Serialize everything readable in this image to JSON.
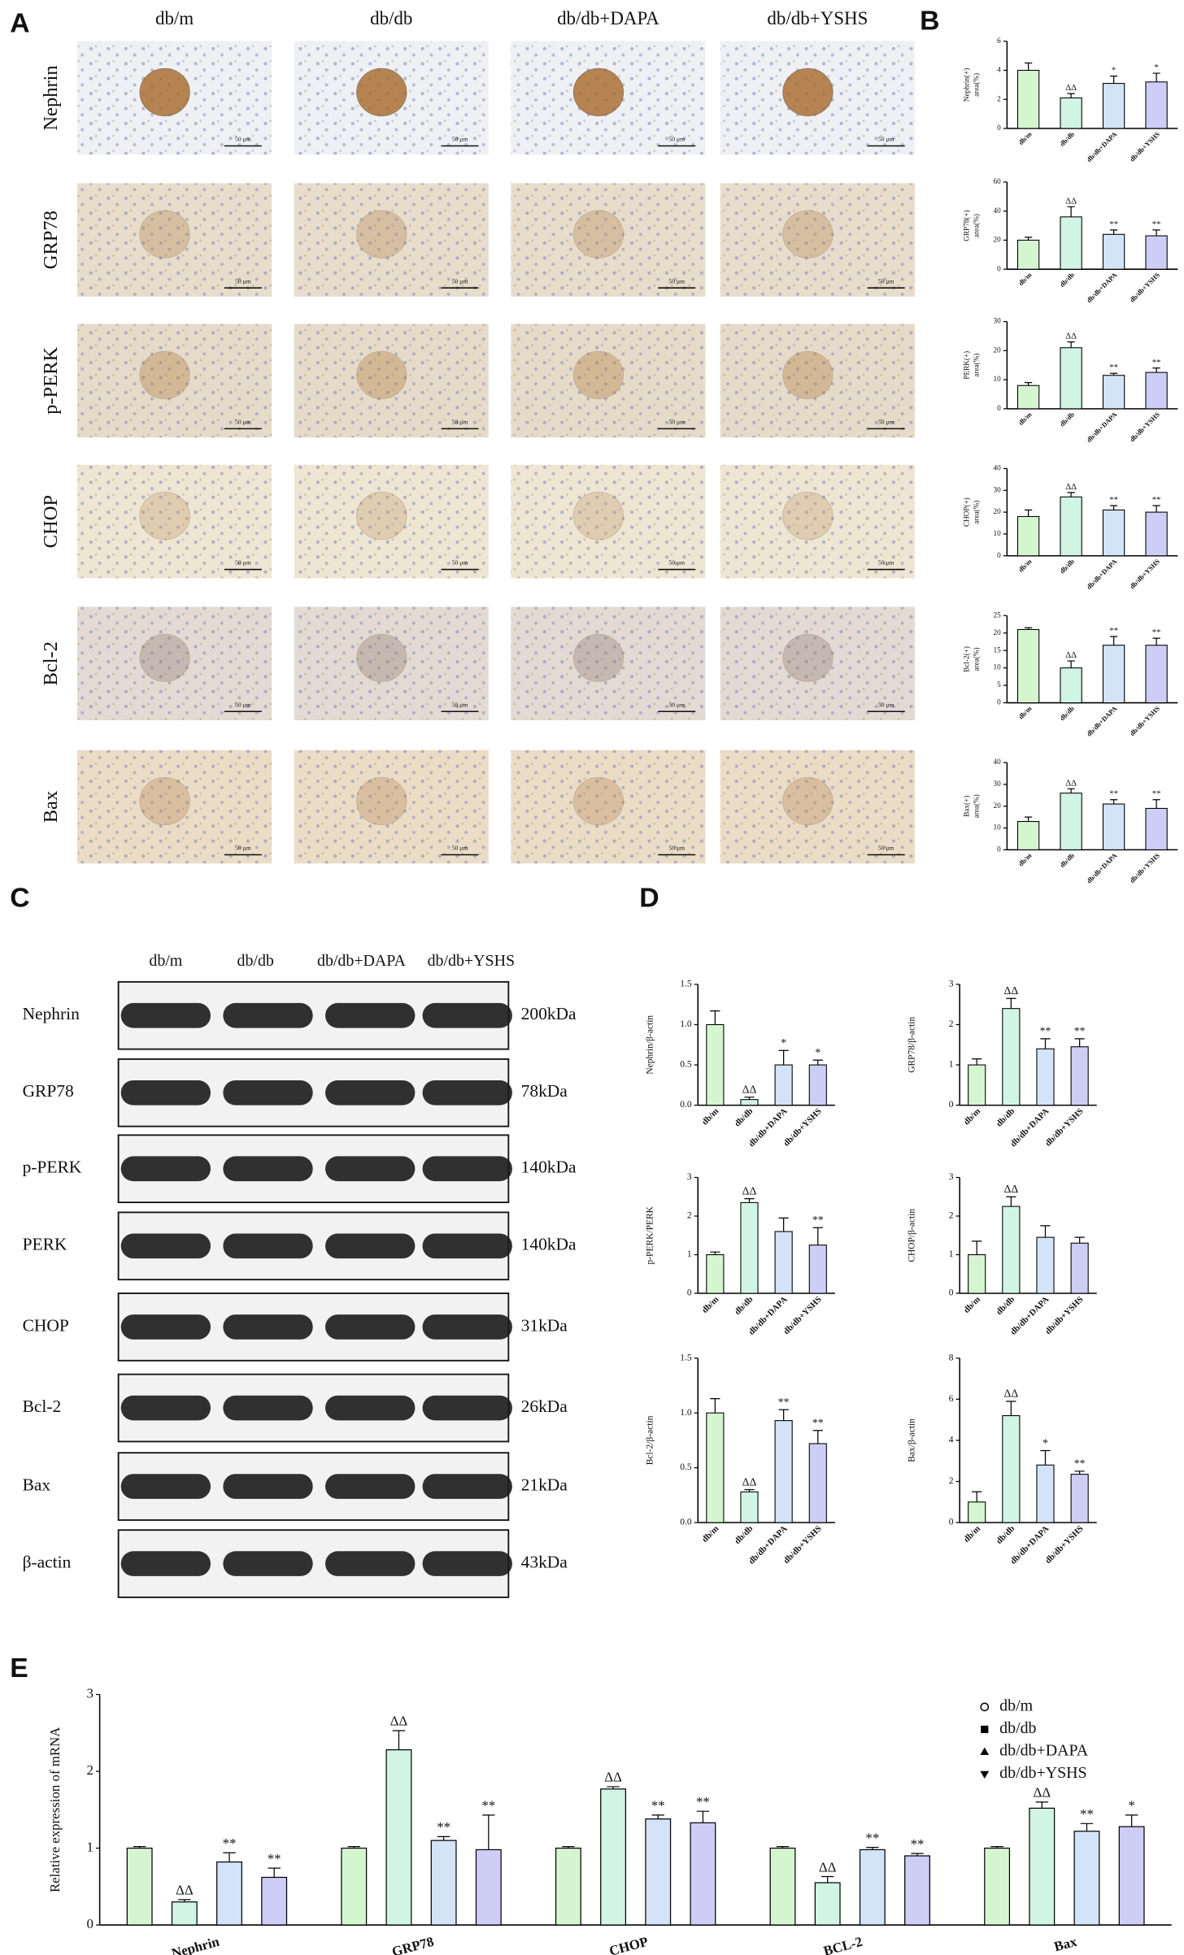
{
  "panel_labels": [
    "A",
    "B",
    "C",
    "D",
    "E"
  ],
  "panel_a": {
    "columns": [
      "db/m",
      "db/db",
      "db/db+DAPA",
      "db/db+YSHS"
    ],
    "rows": [
      "Nephrin",
      "GRP78",
      "p-PERK",
      "CHOP",
      "Bcl-2",
      "Bax"
    ],
    "scale_bar": "50 μm"
  },
  "panel_c": {
    "columns": [
      "db/m",
      "db/db",
      "db/db+DAPA",
      "db/db+YSHS"
    ],
    "rows": [
      {
        "label": "Nephrin",
        "size": "200kDa"
      },
      {
        "label": "GRP78",
        "size": "78kDa"
      },
      {
        "label": "p-PERK",
        "size": "140kDa"
      },
      {
        "label": "PERK",
        "size": "140kDa"
      },
      {
        "label": "CHOP",
        "size": "31kDa"
      },
      {
        "label": "Bcl-2",
        "size": "26kDa"
      },
      {
        "label": "Bax",
        "size": "21kDa"
      },
      {
        "label": "β-actin",
        "size": "43kDa"
      }
    ]
  },
  "chart_data": [
    {
      "type": "bar",
      "ylabel": [
        "Nephrin(+)",
        "area(%)"
      ],
      "categories": [
        "db/m",
        "db/db",
        "db/db+DAPA",
        "db/db+YSHS"
      ],
      "values": [
        4.0,
        2.1,
        3.1,
        3.2
      ],
      "errors": [
        0.5,
        0.3,
        0.5,
        0.6
      ],
      "annotations": [
        null,
        "ΔΔ",
        "*",
        "*"
      ],
      "colors": [
        "#d5f5d0",
        "#d2f4e4",
        "#d3e3f8",
        "#cdcdf6"
      ],
      "ylim": [
        0,
        6
      ],
      "yticks": [
        0,
        2,
        4,
        6
      ],
      "grid": false
    },
    {
      "type": "bar",
      "ylabel": [
        "GRP78(+)",
        "area(%)"
      ],
      "categories": [
        "db/m",
        "db/db",
        "db/db+DAPA",
        "db/db+YSHS"
      ],
      "values": [
        20,
        36,
        24,
        23
      ],
      "errors": [
        2,
        7,
        3,
        4
      ],
      "annotations": [
        null,
        "ΔΔ",
        "**",
        "**"
      ],
      "colors": [
        "#d5f5d0",
        "#d2f4e4",
        "#d3e3f8",
        "#cdcdf6"
      ],
      "ylim": [
        0,
        60
      ],
      "yticks": [
        0,
        20,
        40,
        60
      ],
      "grid": false
    },
    {
      "type": "bar",
      "ylabel": [
        "PERK(+)",
        "area(%)"
      ],
      "categories": [
        "db/m",
        "db/db",
        "db/db+DAPA",
        "db/db+YSHS"
      ],
      "values": [
        8,
        21,
        11.5,
        12.5
      ],
      "errors": [
        1,
        2,
        0.7,
        1.5
      ],
      "annotations": [
        null,
        "ΔΔ",
        "**",
        "**"
      ],
      "colors": [
        "#d5f5d0",
        "#d2f4e4",
        "#d3e3f8",
        "#cdcdf6"
      ],
      "ylim": [
        0,
        30
      ],
      "yticks": [
        0,
        10,
        20,
        30
      ],
      "grid": false
    },
    {
      "type": "bar",
      "ylabel": [
        "CHOP(+)",
        "area(%)"
      ],
      "categories": [
        "db/m",
        "db/db",
        "db/db+DAPA",
        "db/db+YSHS"
      ],
      "values": [
        18,
        27,
        21,
        20
      ],
      "errors": [
        3,
        2,
        2,
        3
      ],
      "annotations": [
        null,
        "ΔΔ",
        "**",
        "**"
      ],
      "colors": [
        "#d5f5d0",
        "#d2f4e4",
        "#d3e3f8",
        "#cdcdf6"
      ],
      "ylim": [
        0,
        40
      ],
      "yticks": [
        0,
        10,
        20,
        30,
        40
      ],
      "grid": false
    },
    {
      "type": "bar",
      "ylabel": [
        "Bcl-2(+)",
        "area(%)"
      ],
      "categories": [
        "db/m",
        "db/db",
        "db/db+DAPA",
        "db/db+YSHS"
      ],
      "values": [
        21,
        10,
        16.5,
        16.5
      ],
      "errors": [
        0.5,
        2,
        2.5,
        2
      ],
      "annotations": [
        null,
        "ΔΔ",
        "**",
        "**"
      ],
      "colors": [
        "#d5f5d0",
        "#d2f4e4",
        "#d3e3f8",
        "#cdcdf6"
      ],
      "ylim": [
        0,
        25
      ],
      "yticks": [
        0,
        5,
        10,
        15,
        20,
        25
      ],
      "grid": false
    },
    {
      "type": "bar",
      "ylabel": [
        "Bax(+)",
        "area(%)"
      ],
      "categories": [
        "db/m",
        "db/db",
        "db/db+DAPA",
        "db/db+YSHS"
      ],
      "values": [
        13,
        26,
        21,
        19
      ],
      "errors": [
        2,
        2,
        2,
        4
      ],
      "annotations": [
        null,
        "ΔΔ",
        "**",
        "**"
      ],
      "colors": [
        "#d5f5d0",
        "#d2f4e4",
        "#d3e3f8",
        "#cdcdf6"
      ],
      "ylim": [
        0,
        40
      ],
      "yticks": [
        0,
        10,
        20,
        30,
        40
      ],
      "grid": false
    },
    {
      "type": "bar",
      "ylabel": [
        "Nephrin/β-actin"
      ],
      "categories": [
        "db/m",
        "db/db",
        "db/db+DAPA",
        "db/db+YSHS"
      ],
      "values": [
        1.0,
        0.07,
        0.5,
        0.5
      ],
      "errors": [
        0.17,
        0.03,
        0.18,
        0.06
      ],
      "annotations": [
        null,
        "ΔΔ",
        "*",
        "*"
      ],
      "colors": [
        "#d5f5d0",
        "#d2f4e4",
        "#d3e3f8",
        "#cdcdf6"
      ],
      "ylim": [
        0,
        1.5
      ],
      "yticks": [
        {
          "value": 0,
          "label": "0.0"
        },
        0.5,
        {
          "value": 1,
          "label": "1.0"
        },
        1.5
      ],
      "grid": false
    },
    {
      "type": "bar",
      "ylabel": [
        "GRP78/β-actin"
      ],
      "categories": [
        "db/m",
        "db/db",
        "db/db+DAPA",
        "db/db+YSHS"
      ],
      "values": [
        1.0,
        2.4,
        1.4,
        1.45
      ],
      "errors": [
        0.15,
        0.25,
        0.25,
        0.2
      ],
      "annotations": [
        null,
        "ΔΔ",
        "**",
        "**"
      ],
      "colors": [
        "#d5f5d0",
        "#d2f4e4",
        "#d3e3f8",
        "#cdcdf6"
      ],
      "ylim": [
        0,
        3
      ],
      "yticks": [
        0,
        1,
        2,
        3
      ],
      "grid": false
    },
    {
      "type": "bar",
      "ylabel": [
        "p-PERK/PERK"
      ],
      "categories": [
        "db/m",
        "db/db",
        "db/db+DAPA",
        "db/db+YSHS"
      ],
      "values": [
        1.0,
        2.35,
        1.6,
        1.25
      ],
      "errors": [
        0.07,
        0.1,
        0.35,
        0.45
      ],
      "annotations": [
        null,
        "ΔΔ",
        null,
        "**"
      ],
      "colors": [
        "#d5f5d0",
        "#d2f4e4",
        "#d3e3f8",
        "#cdcdf6"
      ],
      "ylim": [
        0,
        3
      ],
      "yticks": [
        0,
        1,
        2,
        3
      ],
      "grid": false
    },
    {
      "type": "bar",
      "ylabel": [
        "CHOP/β-actin"
      ],
      "categories": [
        "db/m",
        "db/db",
        "db/db+DAPA",
        "db/db+YSHS"
      ],
      "values": [
        1.0,
        2.25,
        1.45,
        1.3
      ],
      "errors": [
        0.35,
        0.25,
        0.3,
        0.15
      ],
      "annotations": [
        null,
        "ΔΔ",
        null,
        null
      ],
      "colors": [
        "#d5f5d0",
        "#d2f4e4",
        "#d3e3f8",
        "#cdcdf6"
      ],
      "ylim": [
        0,
        3
      ],
      "yticks": [
        0,
        1,
        2,
        3
      ],
      "grid": false
    },
    {
      "type": "bar",
      "ylabel": [
        "Bcl-2/β-actin"
      ],
      "categories": [
        "db/m",
        "db/db",
        "db/db+DAPA",
        "db/db+YSHS"
      ],
      "values": [
        1.0,
        0.28,
        0.93,
        0.72
      ],
      "errors": [
        0.13,
        0.02,
        0.1,
        0.12
      ],
      "annotations": [
        null,
        "ΔΔ",
        "**",
        "**"
      ],
      "colors": [
        "#d5f5d0",
        "#d2f4e4",
        "#d3e3f8",
        "#cdcdf6"
      ],
      "ylim": [
        0,
        1.5
      ],
      "yticks": [
        {
          "value": 0,
          "label": "0.0"
        },
        0.5,
        {
          "value": 1,
          "label": "1.0"
        },
        1.5
      ],
      "grid": false
    },
    {
      "type": "bar",
      "ylabel": [
        "Bax/β-actin"
      ],
      "categories": [
        "db/m",
        "db/db",
        "db/db+DAPA",
        "db/db+YSHS"
      ],
      "values": [
        1.0,
        5.2,
        2.8,
        2.35
      ],
      "errors": [
        0.5,
        0.7,
        0.7,
        0.15
      ],
      "annotations": [
        null,
        "ΔΔ",
        "*",
        "**"
      ],
      "colors": [
        "#d5f5d0",
        "#d2f4e4",
        "#d3e3f8",
        "#cdcdf6"
      ],
      "ylim": [
        0,
        8
      ],
      "yticks": [
        0,
        2,
        4,
        6,
        8
      ],
      "grid": false
    },
    {
      "type": "bar",
      "ylabel": [
        "Relative expression of mRNA"
      ],
      "categories": [
        "Nephrin",
        "GRP78",
        "CHOP",
        "BCL-2",
        "Bax"
      ],
      "series": [
        {
          "name": "db/m",
          "color": "#d5f5d0",
          "marker": "circle",
          "values": [
            1,
            1,
            1,
            1,
            1
          ],
          "errors": [
            0.02,
            0.02,
            0.02,
            0.02,
            0.02
          ],
          "annotations": [
            null,
            null,
            null,
            null,
            null
          ]
        },
        {
          "name": "db/db",
          "color": "#d2f4e4",
          "marker": "square",
          "values": [
            0.3,
            2.28,
            1.77,
            0.55,
            1.52
          ],
          "errors": [
            0.03,
            0.25,
            0.03,
            0.08,
            0.08
          ],
          "annotations": [
            "ΔΔ",
            "ΔΔ",
            "ΔΔ",
            "ΔΔ",
            "ΔΔ"
          ]
        },
        {
          "name": "db/db+DAPA",
          "color": "#d3e3f8",
          "marker": "triangle-up",
          "values": [
            0.82,
            1.1,
            1.38,
            0.98,
            1.22
          ],
          "errors": [
            0.12,
            0.05,
            0.05,
            0.03,
            0.1
          ],
          "annotations": [
            "**",
            "**",
            "**",
            "**",
            "**"
          ]
        },
        {
          "name": "db/db+YSHS",
          "color": "#cdcdf6",
          "marker": "triangle-down",
          "values": [
            0.62,
            0.98,
            1.33,
            0.9,
            1.28
          ],
          "errors": [
            0.12,
            0.45,
            0.15,
            0.03,
            0.15
          ],
          "annotations": [
            "**",
            "**",
            "**",
            "**",
            "*"
          ]
        }
      ],
      "ylim": [
        0,
        3
      ],
      "yticks": [
        0,
        1,
        2,
        3
      ],
      "grid": false,
      "legend": "top-right"
    }
  ]
}
